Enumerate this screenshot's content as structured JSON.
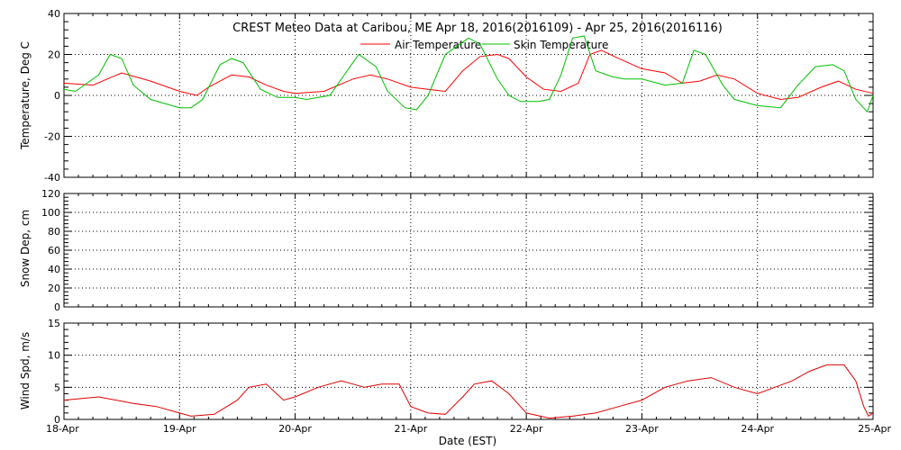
{
  "colors": {
    "air": "#ff0000",
    "skin": "#00c000",
    "wind": "#e00000",
    "axis": "#000000",
    "grid": "#000000"
  },
  "chart_data": [
    {
      "type": "line",
      "panel": "temperature",
      "title": "CREST Meteo Data at Caribou, ME   Apr 18, 2016(2016109) - Apr 25, 2016(2016116)",
      "xlabel": "",
      "ylabel": "Temperature, Deg C",
      "xlim": [
        0,
        7
      ],
      "ylim": [
        -40,
        40
      ],
      "yticks": [
        -40,
        -20,
        0,
        20,
        40
      ],
      "grid": true,
      "legend_position": "top-center",
      "series": [
        {
          "name": "Air Temperature",
          "color": "#ff0000",
          "x": [
            0,
            0.25,
            0.5,
            0.75,
            1.0,
            1.15,
            1.25,
            1.45,
            1.6,
            1.75,
            1.9,
            2.0,
            2.25,
            2.5,
            2.65,
            2.8,
            3.0,
            3.15,
            3.3,
            3.45,
            3.6,
            3.75,
            3.85,
            4.0,
            4.15,
            4.3,
            4.45,
            4.55,
            4.65,
            4.8,
            5.0,
            5.2,
            5.35,
            5.5,
            5.65,
            5.8,
            6.0,
            6.2,
            6.35,
            6.55,
            6.7,
            6.85,
            7.0
          ],
          "y": [
            6,
            5,
            11,
            7,
            2,
            0,
            4,
            10,
            9,
            5,
            2,
            1,
            2,
            8,
            10,
            8,
            4,
            3,
            2,
            12,
            19,
            20,
            18,
            9,
            3,
            2,
            6,
            20,
            22,
            18,
            13,
            11,
            6,
            7,
            10,
            8,
            1,
            -2,
            -1,
            4,
            7,
            3,
            1
          ]
        },
        {
          "name": "Skin Temperature",
          "color": "#00c000",
          "x": [
            0,
            0.1,
            0.3,
            0.4,
            0.5,
            0.6,
            0.75,
            1.0,
            1.1,
            1.2,
            1.35,
            1.45,
            1.55,
            1.7,
            1.85,
            2.0,
            2.1,
            2.3,
            2.45,
            2.55,
            2.7,
            2.8,
            2.95,
            3.05,
            3.15,
            3.3,
            3.5,
            3.6,
            3.75,
            3.85,
            3.95,
            4.1,
            4.2,
            4.3,
            4.4,
            4.5,
            4.6,
            4.75,
            4.85,
            5.0,
            5.2,
            5.35,
            5.45,
            5.55,
            5.7,
            5.8,
            6.0,
            6.2,
            6.35,
            6.5,
            6.65,
            6.75,
            6.85,
            6.95,
            7.0
          ],
          "y": [
            3,
            2,
            10,
            20,
            18,
            5,
            -2,
            -6,
            -6,
            -2,
            15,
            18,
            16,
            3,
            -1,
            -1,
            -2,
            0,
            12,
            20,
            14,
            2,
            -6,
            -7,
            0,
            20,
            28,
            25,
            8,
            0,
            -3,
            -3,
            -2,
            10,
            28,
            29,
            12,
            9,
            8,
            8,
            5,
            6,
            22,
            20,
            5,
            -2,
            -5,
            -6,
            5,
            14,
            15,
            12,
            -2,
            -8,
            0
          ]
        }
      ]
    },
    {
      "type": "line",
      "panel": "snow",
      "title": "",
      "xlabel": "",
      "ylabel": "Snow Dep, cm",
      "xlim": [
        0,
        7
      ],
      "ylim": [
        0,
        120
      ],
      "yticks": [
        0,
        20,
        40,
        60,
        80,
        100,
        120
      ],
      "grid": true,
      "series": []
    },
    {
      "type": "line",
      "panel": "wind",
      "title": "",
      "xlabel": "Date (EST)",
      "ylabel": "Wind Spd, m/s",
      "xlim": [
        0,
        7
      ],
      "ylim": [
        0,
        15
      ],
      "yticks": [
        0,
        5,
        10,
        15
      ],
      "categories": [
        "18-Apr",
        "19-Apr",
        "20-Apr",
        "21-Apr",
        "22-Apr",
        "23-Apr",
        "24-Apr",
        "25-Apr"
      ],
      "grid": true,
      "series": [
        {
          "name": "",
          "color": "#e00000",
          "x": [
            0,
            0.3,
            0.6,
            0.8,
            1.0,
            1.1,
            1.3,
            1.5,
            1.6,
            1.75,
            1.9,
            2.0,
            2.2,
            2.4,
            2.6,
            2.75,
            2.9,
            3.0,
            3.15,
            3.3,
            3.45,
            3.55,
            3.7,
            3.85,
            4.0,
            4.2,
            4.4,
            4.6,
            4.8,
            5.0,
            5.2,
            5.4,
            5.6,
            5.8,
            6.0,
            6.15,
            6.3,
            6.45,
            6.6,
            6.75,
            6.85,
            6.92,
            6.96,
            7.0
          ],
          "y": [
            3,
            3.5,
            2.5,
            2,
            1,
            0.5,
            0.8,
            3,
            5,
            5.5,
            3,
            3.5,
            5,
            6,
            5,
            5.5,
            5.5,
            2,
            1,
            0.8,
            3.5,
            5.5,
            6,
            4,
            1,
            0.2,
            0.5,
            1,
            2,
            3,
            5,
            6,
            6.5,
            5,
            4,
            5,
            6,
            7.5,
            8.5,
            8.5,
            6,
            2,
            0.5,
            1
          ]
        }
      ]
    }
  ]
}
